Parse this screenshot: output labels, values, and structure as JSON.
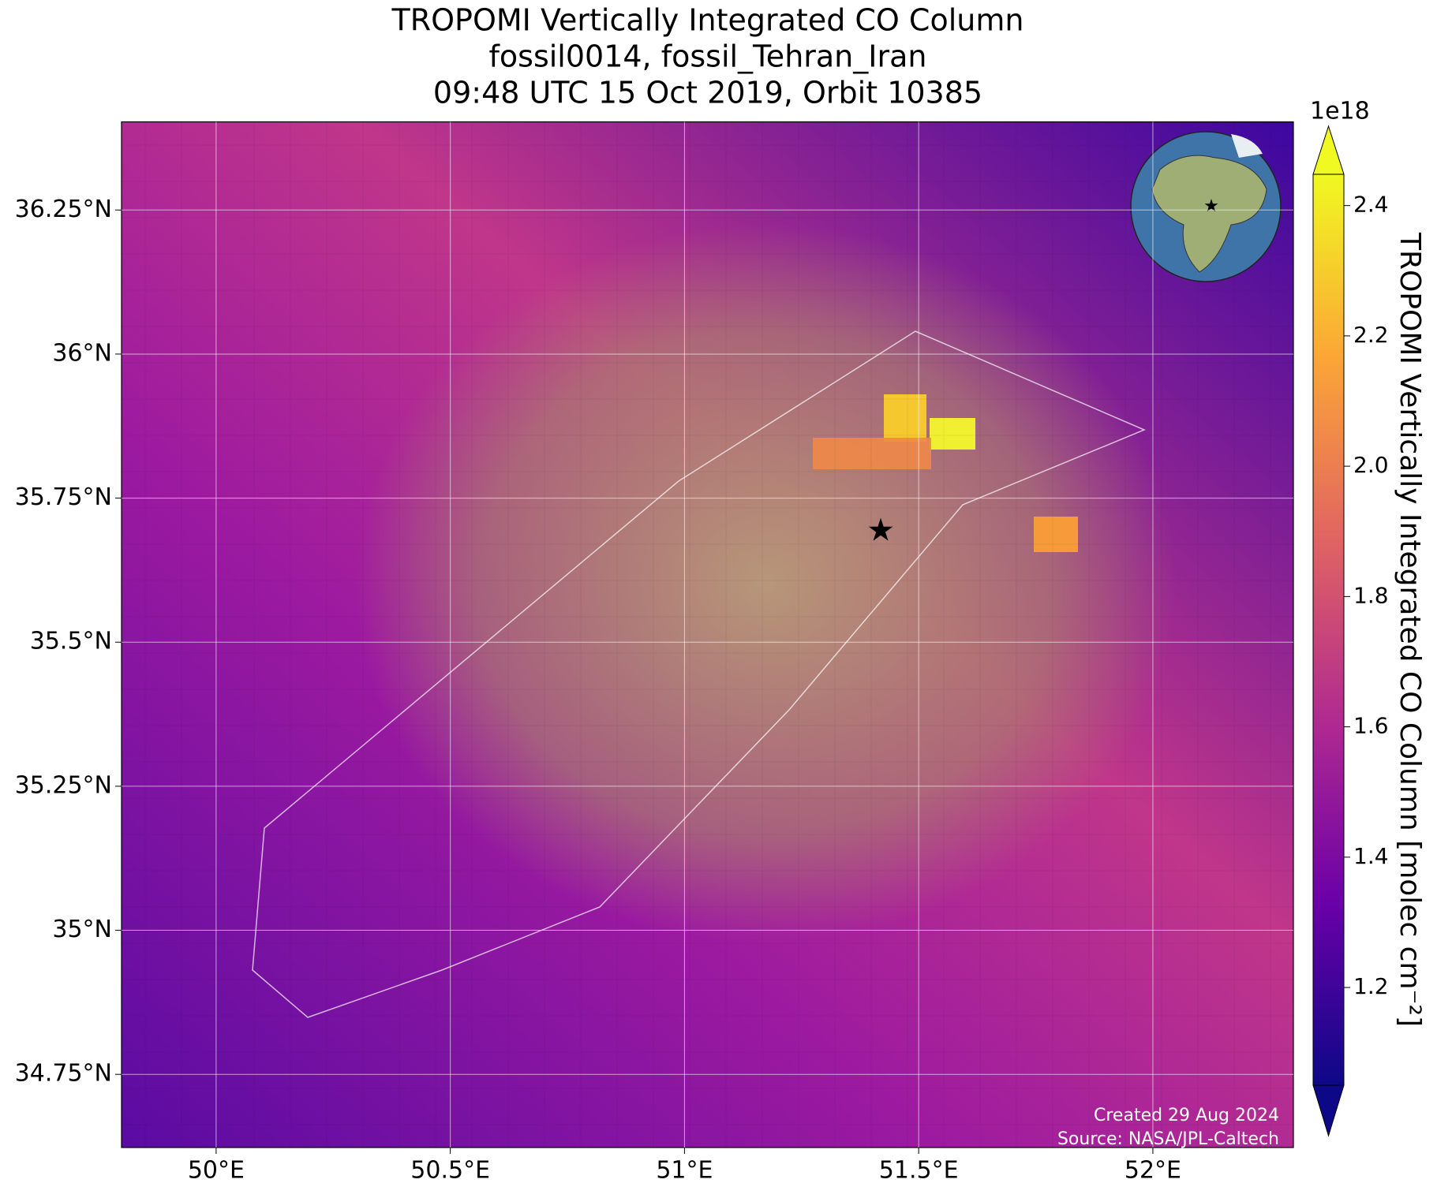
{
  "chart_data": {
    "type": "map",
    "title": [
      "TROPOMI Vertically Integrated CO Column",
      "fossil0014, fossil_Tehran_Iran",
      "09:48 UTC 15 Oct 2019, Orbit 10385"
    ],
    "xlim": [
      49.798,
      52.3
    ],
    "ylim": [
      34.623,
      36.403
    ],
    "xticks": [
      {
        "value": 50,
        "label": "50°E"
      },
      {
        "value": 50.5,
        "label": "50.5°E"
      },
      {
        "value": 51,
        "label": "51°E"
      },
      {
        "value": 51.5,
        "label": "51.5°E"
      },
      {
        "value": 52,
        "label": "52°E"
      }
    ],
    "yticks": [
      {
        "value": 34.75,
        "label": "34.75°N"
      },
      {
        "value": 35,
        "label": "35°N"
      },
      {
        "value": 35.25,
        "label": "35.25°N"
      },
      {
        "value": 35.5,
        "label": "35.5°N"
      },
      {
        "value": 35.75,
        "label": "35.75°N"
      },
      {
        "value": 36,
        "label": "36°N"
      },
      {
        "value": 36.25,
        "label": "36.25°N"
      }
    ],
    "grid": true,
    "marker": {
      "lon": 51.419,
      "lat": 35.694,
      "color": "#ff0000"
    },
    "colorbar": {
      "label": "TROPOMI Vertically Integrated CO Column [molec cm⁻²]",
      "exponent": "1e18",
      "clim": [
        1.05,
        2.448
      ],
      "ticks": [
        1.2,
        1.4,
        1.6,
        1.8,
        {
          "value": 2.0,
          "label": "2.0"
        },
        2.2,
        2.4
      ],
      "colors": [
        "#0d0887",
        "#6a00a8",
        "#b12a90",
        "#e16462",
        "#fca636",
        "#f0f921"
      ]
    },
    "credits": [
      "Created 29 Aug 2024",
      "Source: NASA/JPL-Caltech"
    ]
  }
}
